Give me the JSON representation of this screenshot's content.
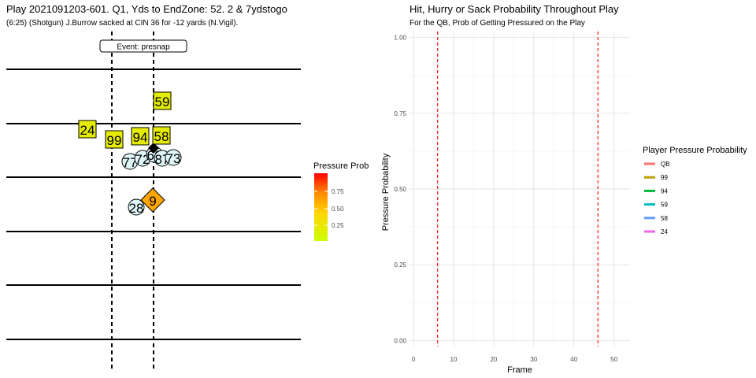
{
  "chart_data": [
    {
      "type": "scatter",
      "title": "Play 2021091203-601. Q1, Yds to EndZone: 52. 2 & 7ydstogo",
      "subtitle": "(6:25) (Shotgun) J.Burrow sacked at CIN 36 for -12 yards (N.Vigil).",
      "event_label": "Event: presnap",
      "legend": {
        "title": "Pressure Prob",
        "ticks": [
          "0.25",
          "0.50",
          "0.75"
        ],
        "colors": [
          "#CCFF00",
          "#FFD700",
          "#FF8C00",
          "#FF0000"
        ]
      },
      "defenders": [
        {
          "label": "59",
          "prob": 0.15
        },
        {
          "label": "24",
          "prob": 0.16
        },
        {
          "label": "99",
          "prob": 0.17
        },
        {
          "label": "94",
          "prob": 0.17
        },
        {
          "label": "58",
          "prob": 0.17
        }
      ],
      "offense": [
        {
          "label": "77"
        },
        {
          "label": "72"
        },
        {
          "label": "66"
        },
        {
          "label": "87"
        },
        {
          "label": "73"
        },
        {
          "label": "28"
        }
      ],
      "qb": {
        "label": "9",
        "prob": 0.55
      }
    },
    {
      "type": "line",
      "title": "Hit, Hurry or Sack Probability Throughout Play",
      "subtitle": "For the QB, Prob of Getting Pressured on the Play",
      "xlabel": "Frame",
      "ylabel": "Pressure Probability",
      "xlim": [
        -1,
        54
      ],
      "ylim": [
        -0.02,
        1.02
      ],
      "xticks": [
        "0",
        "10",
        "20",
        "30",
        "40",
        "50"
      ],
      "yticks": [
        "0.00",
        "0.25",
        "0.50",
        "0.75",
        "1.00"
      ],
      "vlines": [
        6,
        46
      ],
      "grid": true,
      "legend_title": "Player Pressure Probability",
      "legend_position": "right",
      "series": [
        {
          "name": "QB",
          "color": "#F8766D",
          "values": []
        },
        {
          "name": "99",
          "color": "#B79F00",
          "values": []
        },
        {
          "name": "94",
          "color": "#00BA38",
          "values": []
        },
        {
          "name": "59",
          "color": "#00BFC4",
          "values": []
        },
        {
          "name": "58",
          "color": "#619CFF",
          "values": []
        },
        {
          "name": "24",
          "color": "#F564E3",
          "values": []
        }
      ]
    }
  ]
}
